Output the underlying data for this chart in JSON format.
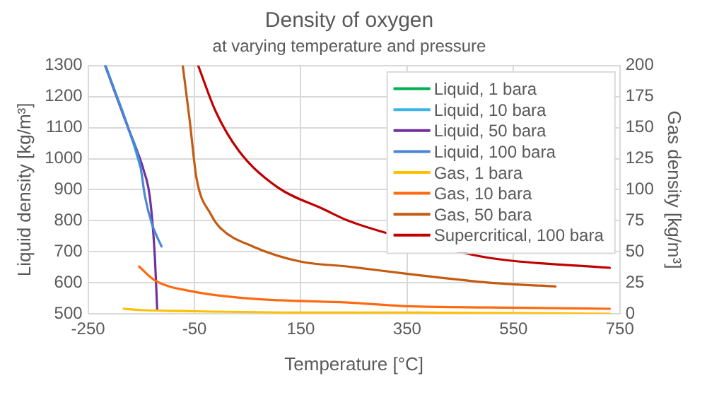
{
  "chart_data": {
    "type": "line",
    "title": "Density of oxygen",
    "subtitle": "at varying temperature and pressure",
    "xlabel": "Temperature [°C]",
    "ylabel": "Liquid density [kg/m³]",
    "y2label": "Gas density [kg/m³]",
    "xlim": [
      -250,
      750
    ],
    "xticks": [
      -250,
      -50,
      150,
      350,
      550,
      750
    ],
    "ylim": [
      500,
      1300
    ],
    "yticks": [
      500,
      600,
      700,
      800,
      900,
      1000,
      1100,
      1200,
      1300
    ],
    "y2lim": [
      0,
      200
    ],
    "y2ticks": [
      0,
      25,
      50,
      75,
      100,
      125,
      150,
      175,
      200
    ],
    "grid": true,
    "legend": "top right",
    "series": [
      {
        "name": "Liquid, 1 bara",
        "color": "#00b050"
      },
      {
        "name": "Liquid, 10 bara",
        "color": "#3cb4e6",
        "x": [
          -217,
          -200,
          -183,
          -165,
          -152
        ],
        "values": [
          1300,
          1220,
          1142,
          1050,
          975
        ]
      },
      {
        "name": "Liquid, 50 bara",
        "color": "#7030a0",
        "x": [
          -218,
          -174,
          -160,
          -145,
          -134,
          -125,
          -120
        ],
        "values": [
          1300,
          1096,
          1035,
          960,
          878,
          700,
          512
        ]
      },
      {
        "name": "Liquid, 100 bara",
        "color": "#4a86d6",
        "x": [
          -218,
          -174,
          -152,
          -143,
          -130,
          -112
        ],
        "values": [
          1300,
          1096,
          980,
          878,
          790,
          717
        ]
      },
      {
        "name": "Gas, 1 bara",
        "color": "#ffc000",
        "axis": "y2",
        "x": [
          -183,
          -150,
          -50,
          150,
          350,
          731
        ],
        "values": [
          4,
          3,
          2,
          1,
          1,
          0
        ]
      },
      {
        "name": "Gas, 10 bara",
        "color": "#ff6a10",
        "axis": "y2",
        "x": [
          -154,
          -125,
          -54,
          61,
          239,
          354,
          505,
          731
        ],
        "values": [
          38,
          27,
          18,
          12,
          9,
          6,
          5,
          4
        ]
      },
      {
        "name": "Gas, 50 bara",
        "color": "#c55a11",
        "axis": "y2",
        "x": [
          -72,
          -59,
          -46,
          -19,
          -1,
          61,
          150,
          239,
          354,
          505,
          629
        ],
        "values": [
          200,
          156,
          109,
          80,
          69,
          54,
          42,
          38,
          32,
          25,
          22
        ]
      },
      {
        "name": "Supercritical, 100 bara",
        "color": "#c00000",
        "axis": "y2",
        "x": [
          -43,
          -10,
          34,
          106,
          194,
          239,
          354,
          505,
          731
        ],
        "values": [
          200,
          163,
          131,
          102,
          84,
          75,
          60,
          45,
          37
        ]
      }
    ]
  }
}
